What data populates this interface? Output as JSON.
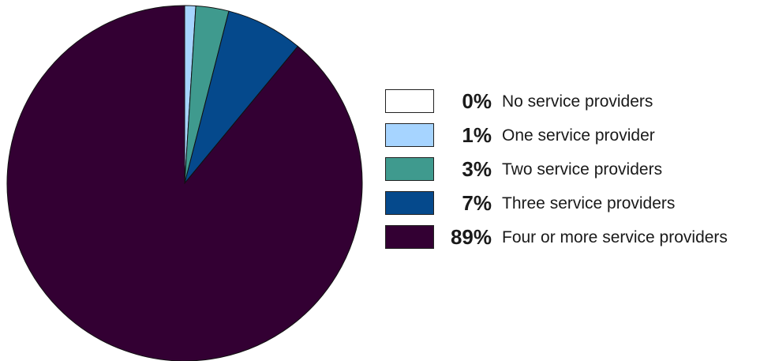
{
  "chart_data": {
    "type": "pie",
    "slices": [
      {
        "label": "No service providers",
        "value": 0,
        "display": "0%",
        "color": "#ffffff"
      },
      {
        "label": "One service provider",
        "value": 1,
        "display": "1%",
        "color": "#a6d4ff"
      },
      {
        "label": "Two service providers",
        "value": 3,
        "display": "3%",
        "color": "#3f9a8e"
      },
      {
        "label": "Three service providers",
        "value": 7,
        "display": "7%",
        "color": "#05498c"
      },
      {
        "label": "Four or more service providers",
        "value": 89,
        "display": "89%",
        "color": "#330033"
      }
    ],
    "start_angle": "12 o'clock",
    "direction": "clockwise",
    "legend_position": "right"
  }
}
